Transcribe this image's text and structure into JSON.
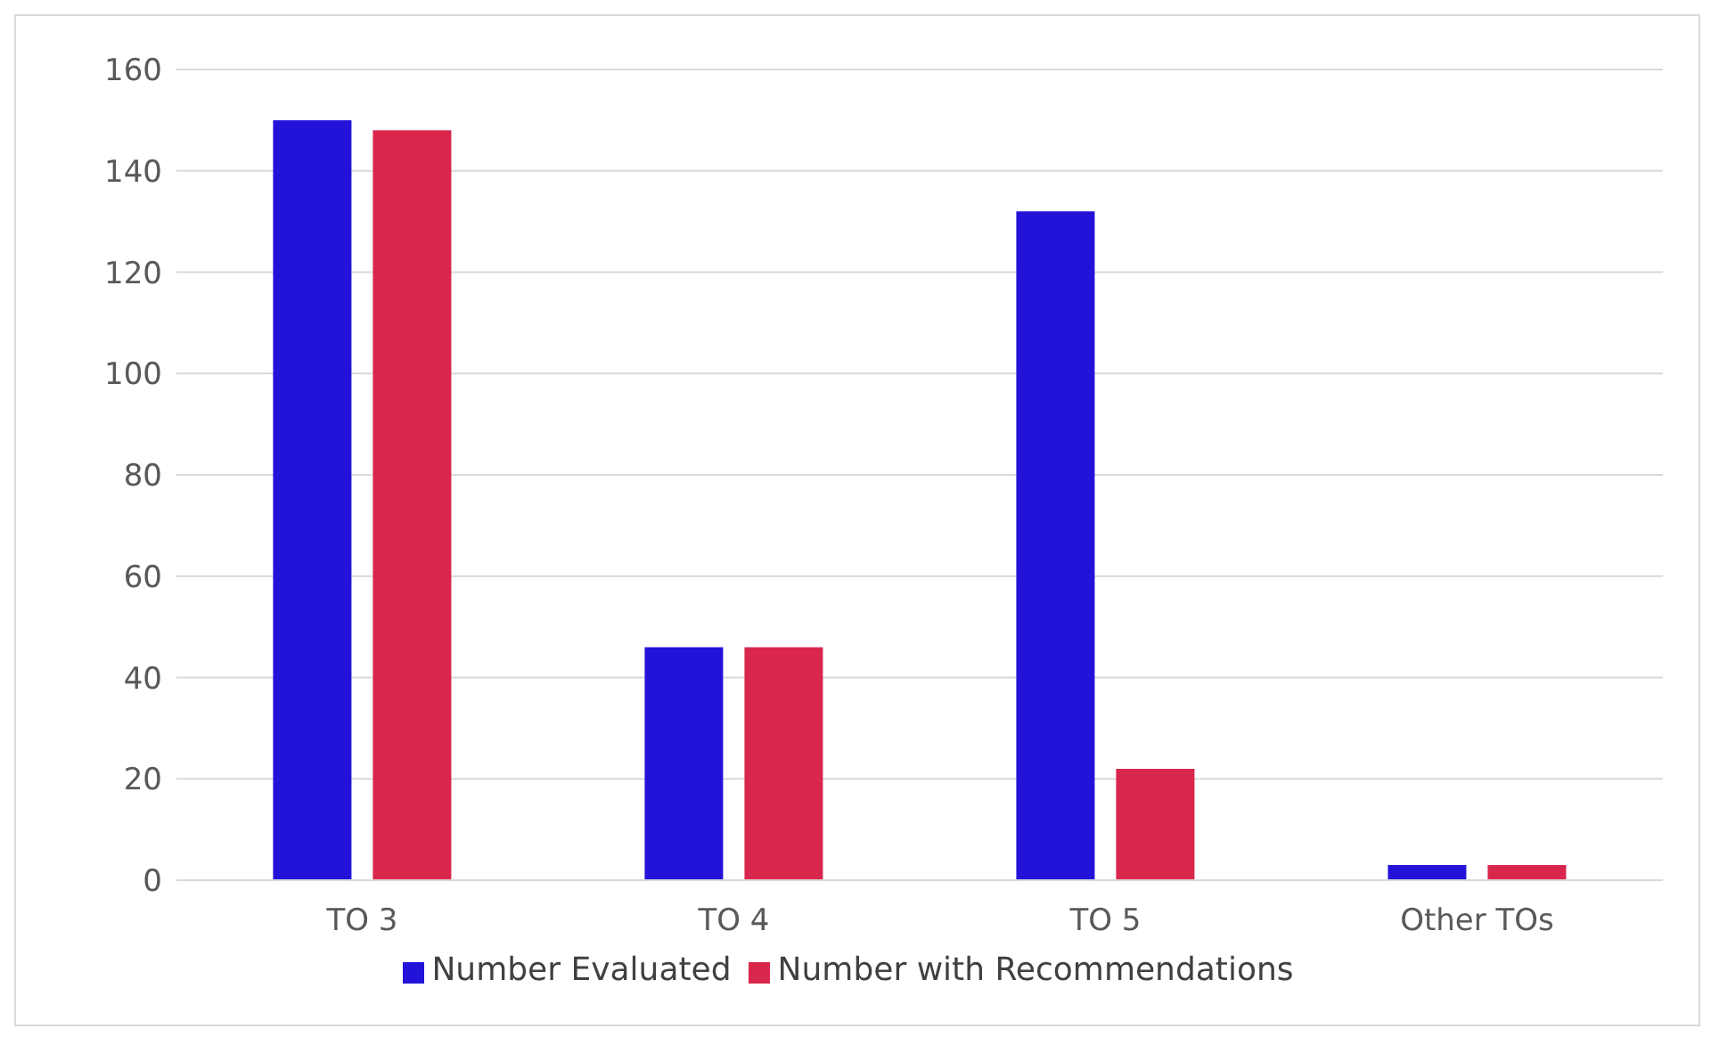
{
  "chart_data": {
    "type": "bar",
    "categories": [
      "TO 3",
      "TO 4",
      "TO 5",
      "Other TOs"
    ],
    "series": [
      {
        "name": "Number Evaluated",
        "color": "#2313d9",
        "values": [
          150,
          46,
          132,
          3
        ]
      },
      {
        "name": "Number with Recommendations",
        "color": "#d9264c",
        "values": [
          148,
          46,
          22,
          3
        ]
      }
    ],
    "ylim": [
      0,
      160
    ],
    "yticks": [
      0,
      20,
      40,
      60,
      80,
      100,
      120,
      140,
      160
    ],
    "grid": "y",
    "legend": "bottom"
  }
}
